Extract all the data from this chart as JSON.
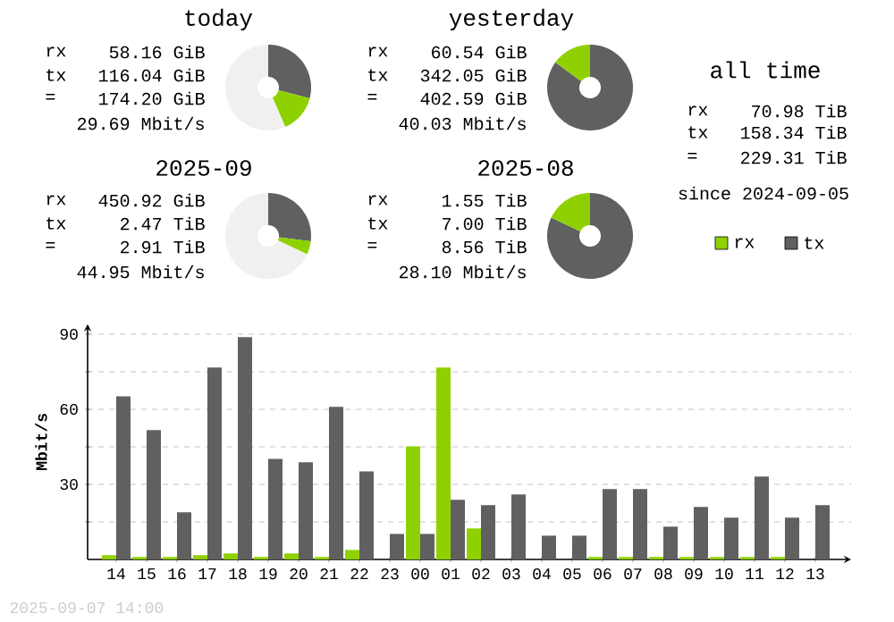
{
  "chart_data": [
    {
      "type": "donut",
      "title": "today",
      "categories": [
        null,
        null,
        null
      ],
      "values": [
        29,
        14.5,
        56.5
      ],
      "colors": [
        "#606060",
        "#8fd100",
        "#f0f0f0"
      ],
      "annotations": [
        "rx",
        "58.16 GiB",
        "tx",
        "116.04 GiB",
        "=",
        "174.20 GiB",
        "29.69 Mbit/s"
      ]
    },
    {
      "type": "donut",
      "title": "yesterday",
      "categories": [
        null,
        null
      ],
      "values": [
        85,
        15
      ],
      "colors": [
        "#606060",
        "#8fd100"
      ],
      "annotations": [
        "rx",
        "60.54 GiB",
        "tx",
        "342.05 GiB",
        "=",
        "402.59 GiB",
        "40.03 Mbit/s"
      ]
    },
    {
      "type": "donut",
      "title": "2025-09",
      "categories": [
        null,
        null,
        null
      ],
      "values": [
        27,
        5,
        68
      ],
      "colors": [
        "#606060",
        "#8fd100",
        "#f0f0f0"
      ],
      "annotations": [
        "rx",
        "450.92 GiB",
        "tx",
        "2.47 TiB",
        "=",
        "2.91 TiB",
        "44.95 Mbit/s"
      ]
    },
    {
      "type": "donut",
      "title": "2025-08",
      "categories": [
        null,
        null
      ],
      "values": [
        82,
        18
      ],
      "colors": [
        "#606060",
        "#8fd100"
      ],
      "annotations": [
        "rx",
        "1.55 TiB",
        "tx",
        "7.00 TiB",
        "=",
        "8.56 TiB",
        "28.10 Mbit/s"
      ]
    },
    {
      "type": "other",
      "title": "all time",
      "annotations": [
        "rx",
        "70.98 TiB",
        "tx",
        "158.34 TiB",
        "=",
        "229.31 TiB",
        "since 2024-09-05"
      ]
    },
    {
      "type": "bar",
      "ylabel": "Mbit/s",
      "categories": [
        "14",
        "15",
        "16",
        "17",
        "18",
        "19",
        "20",
        "21",
        "22",
        "23",
        "00",
        "01",
        "02",
        "03",
        "04",
        "05",
        "06",
        "07",
        "08",
        "09",
        "10",
        "11",
        "12",
        "13"
      ],
      "series": [
        {
          "name": "rx",
          "color": "#8fd100",
          "values": [
            1.7,
            1,
            1,
            1.7,
            2.4,
            1,
            2.4,
            1,
            3.8,
            0,
            45.2,
            76.7,
            12.4,
            0,
            0,
            0,
            1,
            1,
            1,
            1,
            1,
            1,
            1,
            0
          ]
        },
        {
          "name": "tx",
          "color": "#606060",
          "values": [
            65.2,
            51.7,
            18.8,
            76.7,
            88.8,
            40.2,
            38.8,
            61,
            35.2,
            10.2,
            10.2,
            23.8,
            21.7,
            26,
            9.5,
            9.5,
            28.1,
            28.1,
            13.1,
            21,
            16.7,
            33.1,
            16.7,
            21.7
          ]
        }
      ],
      "ylim": [
        0,
        94
      ],
      "yticks": [
        {
          "value": 15,
          "label": null
        },
        30,
        {
          "value": 45,
          "label": null
        },
        60,
        {
          "value": 75,
          "label": null
        },
        90
      ],
      "grid": "y",
      "legend": "top right",
      "annotations": [
        "2025-09-07 14:00"
      ]
    }
  ]
}
